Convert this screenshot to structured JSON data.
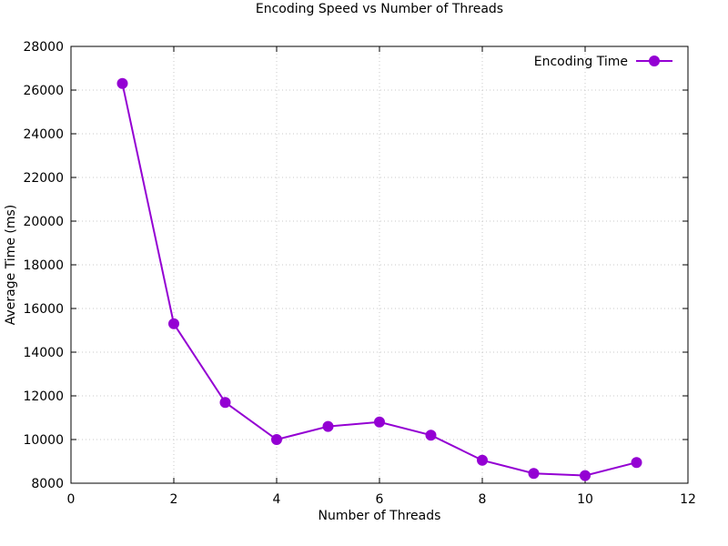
{
  "chart_data": {
    "type": "line",
    "title": "Encoding Speed vs Number of Threads",
    "xlabel": "Number of Threads",
    "ylabel": "Average Time (ms)",
    "xlim": [
      0,
      12
    ],
    "ylim": [
      8000,
      28000
    ],
    "x_ticks": [
      0,
      2,
      4,
      6,
      8,
      10,
      12
    ],
    "y_ticks": [
      8000,
      10000,
      12000,
      14000,
      16000,
      18000,
      20000,
      22000,
      24000,
      26000,
      28000
    ],
    "grid": true,
    "legend_position": "top-right",
    "series": [
      {
        "name": "Encoding Time",
        "color": "#9400d3",
        "x": [
          1,
          2,
          3,
          4,
          5,
          6,
          7,
          8,
          9,
          10,
          11
        ],
        "y": [
          26300,
          15300,
          11700,
          10000,
          10600,
          10800,
          10200,
          9050,
          8450,
          8350,
          8950
        ]
      }
    ]
  }
}
